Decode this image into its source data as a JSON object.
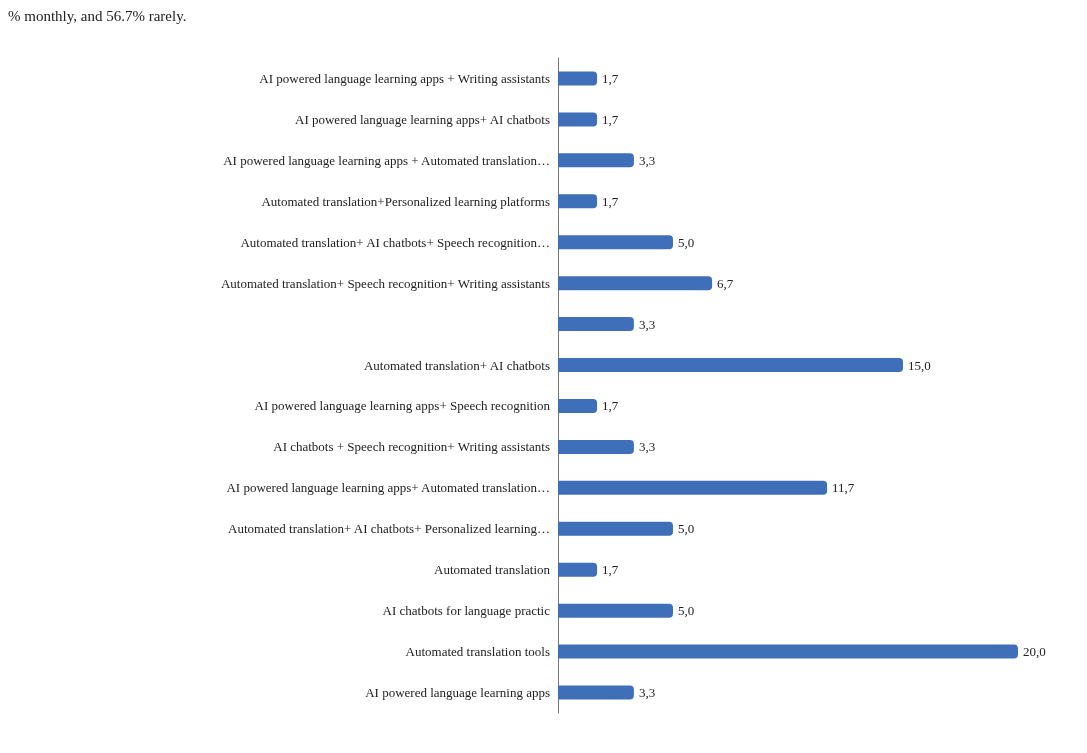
{
  "chart_data": {
    "type": "bar",
    "orientation": "horizontal",
    "annotations": [
      "% monthly, and 56.7% rarely."
    ],
    "categories": [
      "AI powered language learning apps + Writing assistants",
      "AI powered language learning apps+ AI chatbots",
      "AI powered language learning apps + Automated translation…",
      "Automated translation+Personalized learning platforms",
      "Automated translation+ AI chatbots+ Speech recognition…",
      "Automated translation+ Speech recognition+ Writing assistants",
      null,
      "Automated translation+ AI chatbots",
      "AI powered language learning apps+ Speech recognition",
      "AI chatbots + Speech recognition+ Writing assistants",
      "AI powered language learning apps+ Automated translation…",
      "Automated translation+ AI chatbots+ Personalized learning…",
      "Automated translation",
      "AI chatbots for language practic",
      "Automated translation tools",
      "AI powered language learning apps"
    ],
    "values": [
      1.7,
      1.7,
      3.3,
      1.7,
      5.0,
      6.7,
      3.3,
      15.0,
      1.7,
      3.3,
      11.7,
      5.0,
      1.7,
      5.0,
      20.0,
      3.3
    ],
    "value_labels": [
      "1,7",
      "1,7",
      "3,3",
      "1,7",
      "5,0",
      "6,7",
      "3,3",
      "15,0",
      "1,7",
      "3,3",
      "11,7",
      "5,0",
      "1,7",
      "5,0",
      "20,0",
      "3,3"
    ],
    "color": "#3f6fb8"
  }
}
